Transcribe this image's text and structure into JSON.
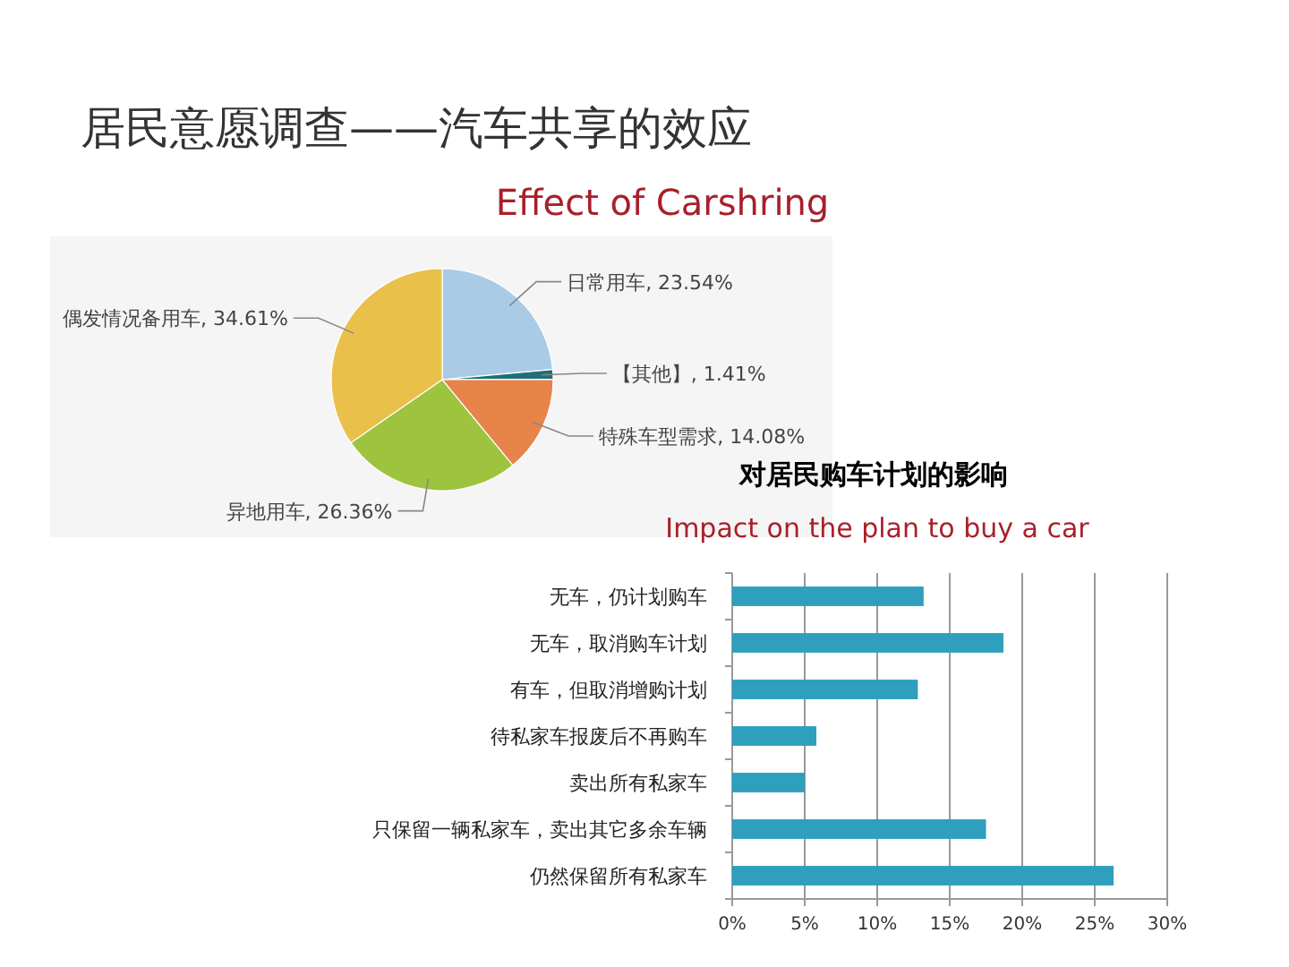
{
  "chart_data": [
    {
      "type": "pie",
      "title": "居民意愿调查——汽车共享的效应",
      "subtitle": "Effect of Carshring",
      "categories": [
        "日常用车",
        "【其他】",
        "特殊车型需求",
        "异地用车",
        "偶发情况备用车"
      ],
      "values": [
        23.54,
        1.41,
        14.08,
        26.36,
        34.61
      ],
      "colors": [
        "#a9cbe6",
        "#1f6f78",
        "#e8834a",
        "#9ec33e",
        "#e9c04a"
      ],
      "value_labels": [
        ", 23.54%",
        ", 1.41%",
        ", 14.08%",
        ", 26.36%",
        ", 34.61%"
      ]
    },
    {
      "type": "bar",
      "orientation": "horizontal",
      "title": "对居民购车计划的影响",
      "subtitle": "Impact on the plan to buy a car",
      "categories": [
        "无车，仍计划购车",
        "无车，取消购车计划",
        "有车，但取消增购计划",
        "待私家车报废后不再购车",
        "卖出所有私家车",
        "只保留一辆私家车，卖出其它多余车辆",
        "仍然保留所有私家车"
      ],
      "values": [
        13.2,
        18.7,
        12.8,
        5.8,
        5.0,
        17.5,
        26.3
      ],
      "color": "#2e9fbd",
      "xlim": [
        0,
        30
      ],
      "xticks": [
        {
          "value": 0,
          "label": "0%"
        },
        {
          "value": 5,
          "label": "5%"
        },
        {
          "value": 10,
          "label": "10%"
        },
        {
          "value": 15,
          "label": "15%"
        },
        {
          "value": 20,
          "label": "20%"
        },
        {
          "value": 25,
          "label": "25%"
        },
        {
          "value": 30,
          "label": "30%"
        }
      ],
      "grid": "x"
    }
  ]
}
